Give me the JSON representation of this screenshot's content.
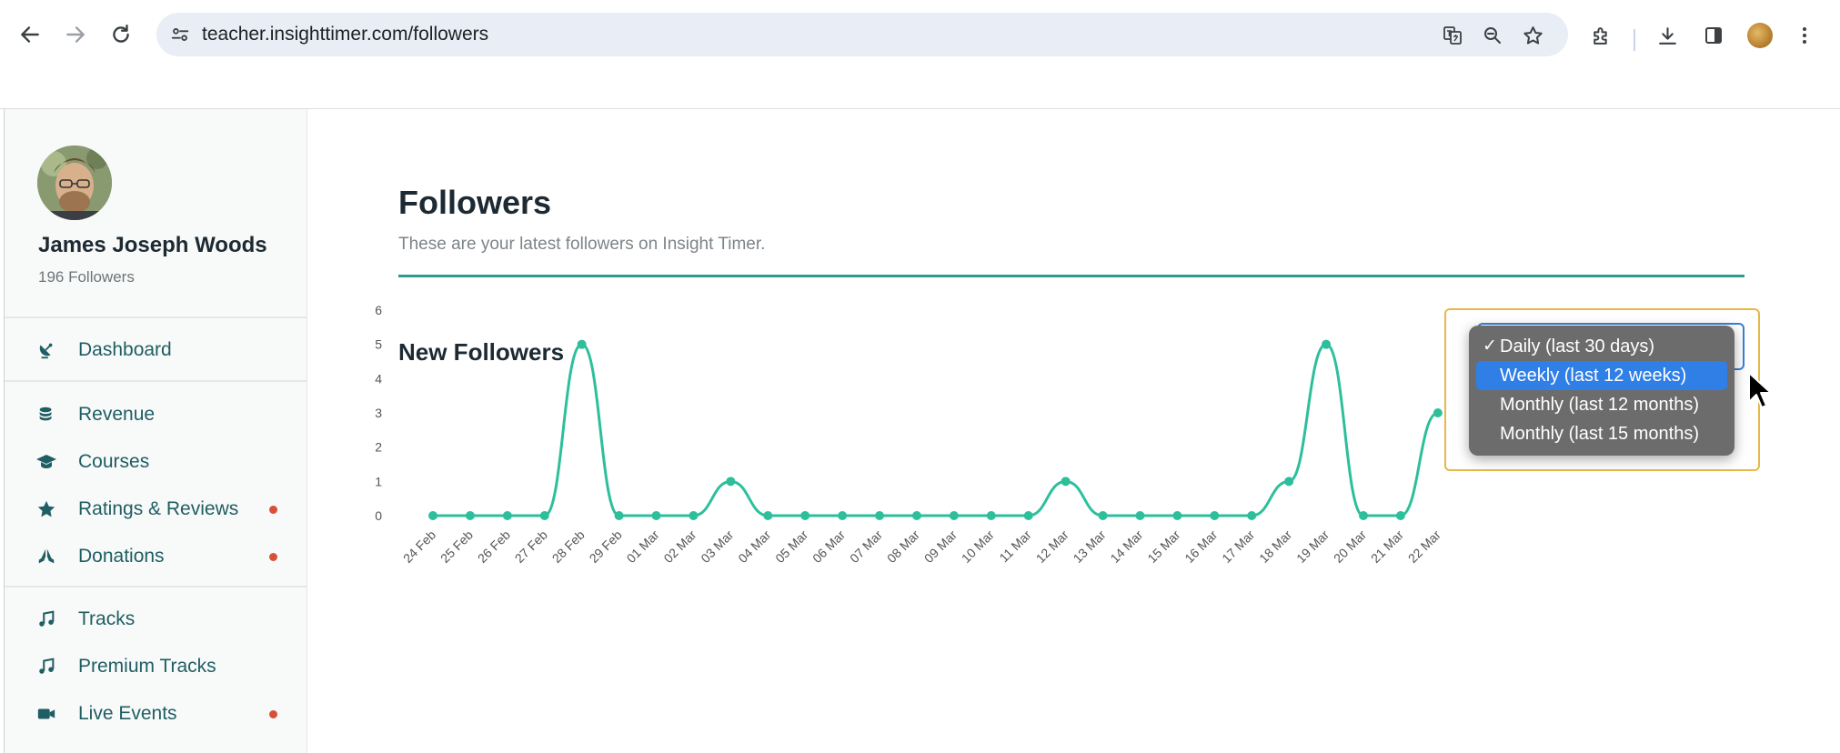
{
  "browser": {
    "url": "teacher.insighttimer.com/followers"
  },
  "sidebar": {
    "profile": {
      "name": "James Joseph Woods",
      "followers": "196 Followers"
    },
    "groups": [
      {
        "items": [
          {
            "label": "Dashboard",
            "icon": "satellite-dish-icon",
            "badge": false
          }
        ]
      },
      {
        "items": [
          {
            "label": "Revenue",
            "icon": "coins-icon",
            "badge": false
          },
          {
            "label": "Courses",
            "icon": "graduation-cap-icon",
            "badge": false
          },
          {
            "label": "Ratings & Reviews",
            "icon": "star-icon",
            "badge": true
          },
          {
            "label": "Donations",
            "icon": "praying-hands-icon",
            "badge": true
          }
        ]
      },
      {
        "items": [
          {
            "label": "Tracks",
            "icon": "music-note-icon",
            "badge": false
          },
          {
            "label": "Premium Tracks",
            "icon": "music-note-icon",
            "badge": false
          },
          {
            "label": "Live Events",
            "icon": "video-camera-icon",
            "badge": true
          }
        ]
      }
    ]
  },
  "main": {
    "title": "Followers",
    "subtitle": "These are your latest followers on Insight Timer.",
    "section_title": "New Followers"
  },
  "period_select": {
    "options": [
      {
        "label": "Daily (last 30 days)",
        "checked": true,
        "highlighted": false
      },
      {
        "label": "Weekly (last 12 weeks)",
        "checked": false,
        "highlighted": true
      },
      {
        "label": "Monthly (last 12 months)",
        "checked": false,
        "highlighted": false
      },
      {
        "label": "Monthly (last 15 months)",
        "checked": false,
        "highlighted": false
      }
    ]
  },
  "colors": {
    "accent": "#2dbf9c",
    "badge": "#d9503a",
    "nav_text": "#1f5e63",
    "rule": "#2d9a8e"
  },
  "chart_data": {
    "type": "line",
    "title": "New Followers",
    "xlabel": "",
    "ylabel": "",
    "ylim": [
      0,
      6
    ],
    "yticks": [
      "0",
      "1",
      "2",
      "3",
      "4",
      "5",
      "6"
    ],
    "grid": false,
    "categories": [
      "24 Feb",
      "25 Feb",
      "26 Feb",
      "27 Feb",
      "28 Feb",
      "29 Feb",
      "01 Mar",
      "02 Mar",
      "03 Mar",
      "04 Mar",
      "05 Mar",
      "06 Mar",
      "07 Mar",
      "08 Mar",
      "09 Mar",
      "10 Mar",
      "11 Mar",
      "12 Mar",
      "13 Mar",
      "14 Mar",
      "15 Mar",
      "16 Mar",
      "17 Mar",
      "18 Mar",
      "19 Mar",
      "20 Mar",
      "21 Mar",
      "22 Mar"
    ],
    "series": [
      {
        "values": [
          0,
          0,
          0,
          0,
          5,
          0,
          0,
          0,
          1,
          0,
          0,
          0,
          0,
          0,
          0,
          0,
          0,
          1,
          0,
          0,
          0,
          0,
          0,
          1,
          5,
          0,
          0,
          3
        ]
      }
    ]
  }
}
